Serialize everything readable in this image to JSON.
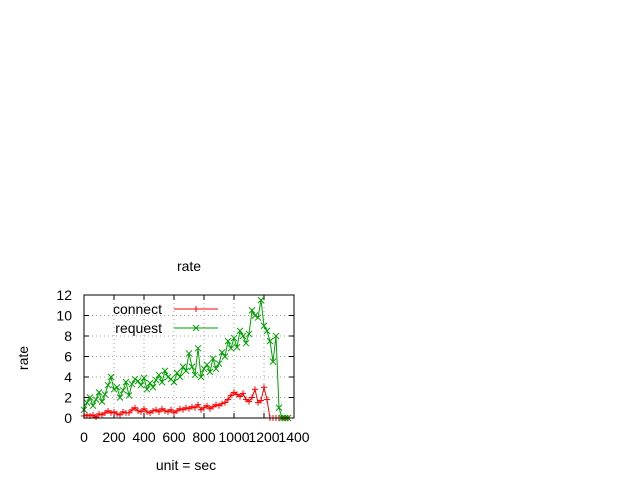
{
  "chart_data": {
    "type": "line",
    "title": "rate",
    "xlabel": "unit = sec",
    "ylabel": "rate",
    "xlim": [
      0,
      1400
    ],
    "ylim": [
      0,
      12
    ],
    "xticks": [
      0,
      200,
      400,
      600,
      800,
      1000,
      1200,
      1400
    ],
    "yticks": [
      0,
      2,
      4,
      6,
      8,
      10,
      12
    ],
    "grid": true,
    "legend_position": "top-left",
    "series": [
      {
        "name": "connect",
        "color": "#ff0000",
        "marker": "plus",
        "x": [
          0,
          20,
          40,
          60,
          80,
          100,
          120,
          140,
          160,
          180,
          200,
          220,
          240,
          260,
          280,
          300,
          320,
          340,
          360,
          380,
          400,
          420,
          440,
          460,
          480,
          500,
          520,
          540,
          560,
          580,
          600,
          620,
          640,
          660,
          680,
          700,
          720,
          740,
          760,
          780,
          800,
          820,
          840,
          860,
          880,
          900,
          920,
          940,
          960,
          980,
          1000,
          1020,
          1040,
          1060,
          1080,
          1100,
          1120,
          1140,
          1160,
          1180,
          1200,
          1220,
          1240,
          1260,
          1280,
          1300,
          1320,
          1340,
          1360
        ],
        "y": [
          0.2,
          0.3,
          0.2,
          0.3,
          0.1,
          0.4,
          0.3,
          0.5,
          0.7,
          0.5,
          0.6,
          0.4,
          0.3,
          0.6,
          0.5,
          0.5,
          0.8,
          1.0,
          0.7,
          0.6,
          0.9,
          0.6,
          0.5,
          0.7,
          0.8,
          0.6,
          0.9,
          0.7,
          0.6,
          0.8,
          0.5,
          0.7,
          0.9,
          0.8,
          1.0,
          0.9,
          1.1,
          1.0,
          1.3,
          0.8,
          1.0,
          1.2,
          0.9,
          1.1,
          1.3,
          1.2,
          1.4,
          1.5,
          1.8,
          2.2,
          2.5,
          2.3,
          2.1,
          2.4,
          1.8,
          1.6,
          2.0,
          2.8,
          1.5,
          1.7,
          3.0,
          1.8,
          0.0,
          0.0,
          0.0,
          0.0,
          0.0,
          0.0,
          0.0
        ]
      },
      {
        "name": "request",
        "color": "#00a000",
        "marker": "cross",
        "x": [
          0,
          20,
          40,
          60,
          80,
          100,
          120,
          140,
          160,
          180,
          200,
          220,
          240,
          260,
          280,
          300,
          320,
          340,
          360,
          380,
          400,
          420,
          440,
          460,
          480,
          500,
          520,
          540,
          560,
          580,
          600,
          620,
          640,
          660,
          680,
          700,
          720,
          740,
          760,
          780,
          800,
          820,
          840,
          860,
          880,
          900,
          920,
          940,
          960,
          980,
          1000,
          1020,
          1040,
          1060,
          1080,
          1100,
          1120,
          1140,
          1160,
          1180,
          1200,
          1220,
          1240,
          1260,
          1280,
          1300,
          1320,
          1340,
          1360
        ],
        "y": [
          0.8,
          1.5,
          2.0,
          1.2,
          1.8,
          2.5,
          1.6,
          2.3,
          3.2,
          4.0,
          2.8,
          3.0,
          2.0,
          2.7,
          3.5,
          2.2,
          3.3,
          3.8,
          3.6,
          3.2,
          3.9,
          2.8,
          3.4,
          3.0,
          3.7,
          4.2,
          3.5,
          4.6,
          4.0,
          3.8,
          3.5,
          4.4,
          4.0,
          5.0,
          4.6,
          6.3,
          5.0,
          4.2,
          6.8,
          4.0,
          4.8,
          5.2,
          4.5,
          5.8,
          4.8,
          5.3,
          6.4,
          6.0,
          7.5,
          6.8,
          7.8,
          6.9,
          8.5,
          8.0,
          7.3,
          8.2,
          10.5,
          10.0,
          9.8,
          11.5,
          9.0,
          8.5,
          7.5,
          5.5,
          8.0,
          1.0,
          0.0,
          0.0,
          0.0
        ]
      }
    ]
  }
}
